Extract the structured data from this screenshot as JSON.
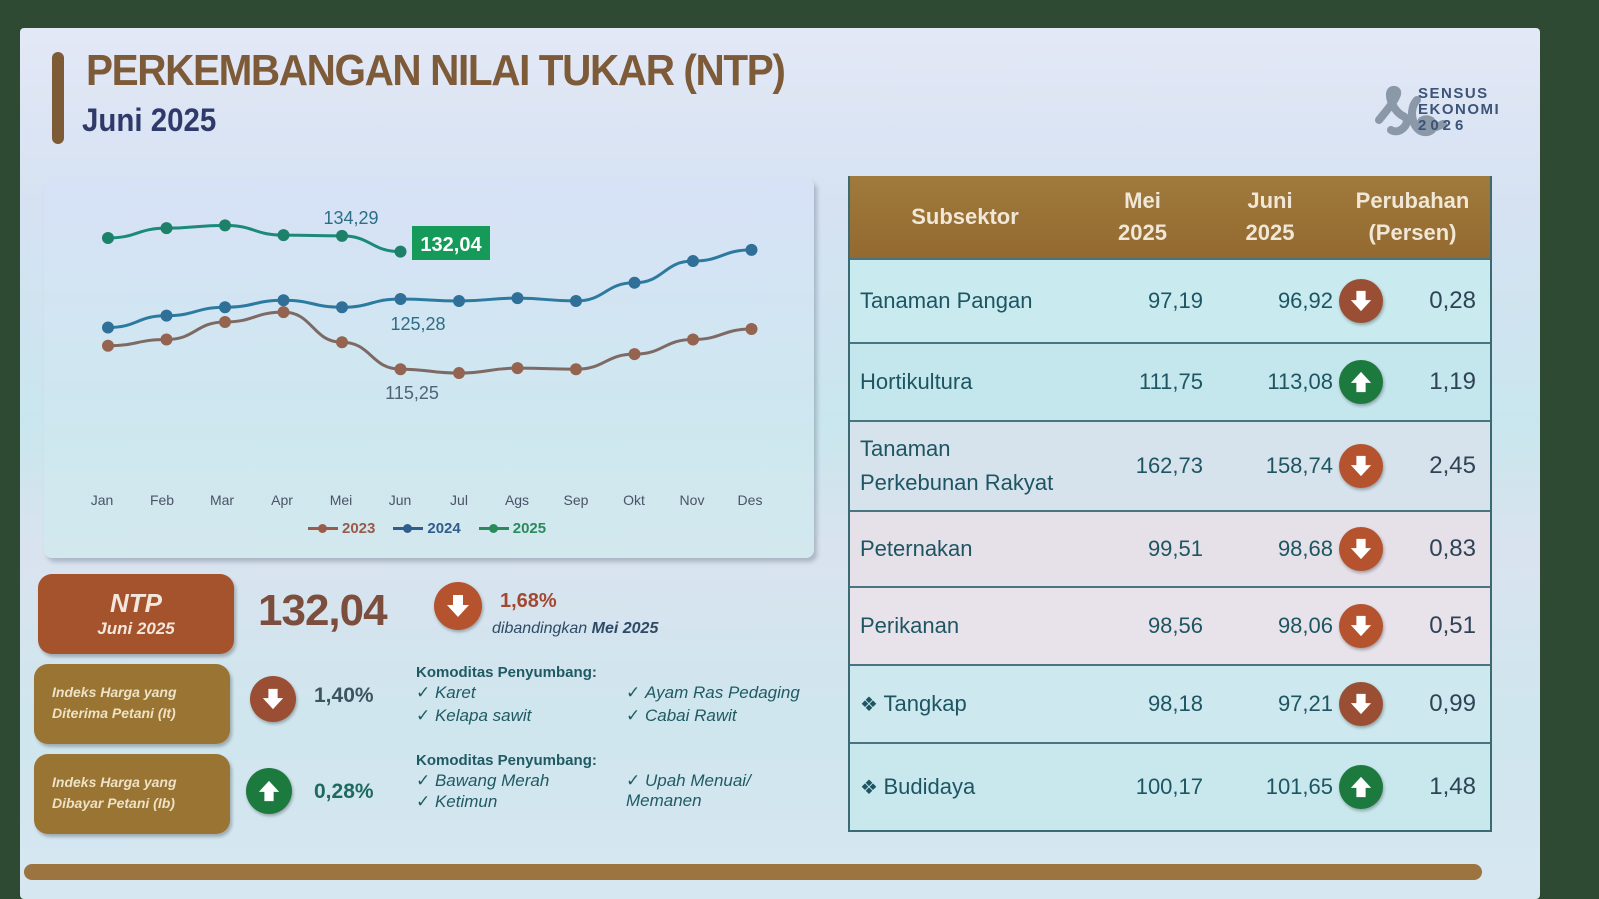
{
  "header": {
    "title": "PERKEMBANGAN NILAI TUKAR (NTP)",
    "subtitle": "Juni 2025",
    "logo": {
      "line1": "SENSUS",
      "line2": "EKONOMI",
      "line3": "2026",
      "icon": "se2026-logo-icon"
    }
  },
  "chart_data": {
    "type": "line",
    "title": "",
    "xlabel": "",
    "ylabel": "",
    "categories": [
      "Jan",
      "Feb",
      "Mar",
      "Apr",
      "Mei",
      "Jun",
      "Jul",
      "Ags",
      "Sep",
      "Okt",
      "Nov",
      "Des"
    ],
    "series": [
      {
        "name": "2023",
        "color": "#8a6a5e",
        "values": [
          118.6,
          119.5,
          122.0,
          123.4,
          119.1,
          115.25,
          114.7,
          115.4,
          115.25,
          117.4,
          119.5,
          121.0
        ]
      },
      {
        "name": "2024",
        "color": "#2c7aa3",
        "values": [
          121.2,
          122.9,
          124.1,
          125.1,
          124.1,
          125.28,
          125.0,
          125.4,
          125.0,
          127.6,
          130.7,
          132.3
        ]
      },
      {
        "name": "2025",
        "color": "#1e8a7a",
        "values": [
          134.0,
          135.4,
          135.8,
          134.4,
          134.29,
          132.04
        ]
      }
    ],
    "annotations": [
      {
        "series": "2025",
        "x": "Mei",
        "label": "134,29"
      },
      {
        "series": "2025",
        "x": "Jun",
        "label": "132,04",
        "highlight": true
      },
      {
        "series": "2024",
        "x": "Jun",
        "label": "125,28"
      },
      {
        "series": "2023",
        "x": "Jun",
        "label": "115,25"
      }
    ],
    "grid": false,
    "legend_position": "bottom",
    "ylim": [
      105,
      142
    ]
  },
  "chart_labels": {
    "label_2025_mei": "134,29",
    "label_2025_jun": "132,04",
    "label_2024_jun": "125,28",
    "label_2023_jun": "115,25"
  },
  "months": [
    "Jan",
    "Feb",
    "Mar",
    "Apr",
    "Mei",
    "Jun",
    "Jul",
    "Ags",
    "Sep",
    "Okt",
    "Nov",
    "Des"
  ],
  "legend": [
    {
      "label": "2023",
      "color": "#9a5a4c"
    },
    {
      "label": "2024",
      "color": "#2f5d8c"
    },
    {
      "label": "2025",
      "color": "#2b8a5c"
    }
  ],
  "ntp": {
    "label": "NTP",
    "period": "Juni 2025",
    "value": "132,04",
    "direction": "down",
    "change": "1,68%",
    "note_prefix": "dibandingkan ",
    "note_period": "Mei 2025"
  },
  "indices": [
    {
      "label_line1": "Indeks Harga yang",
      "label_line2": "Diterima Petani (It)",
      "direction": "down",
      "change": "1,40%",
      "komoditas_header": "Komoditas Penyumbang:",
      "komoditas": [
        "Karet",
        "Ayam Ras Pedaging",
        "Kelapa sawit",
        "Cabai Rawit"
      ]
    },
    {
      "label_line1": "Indeks Harga yang",
      "label_line2": "Dibayar Petani (Ib)",
      "direction": "up",
      "change": "0,28%",
      "komoditas_header": "Komoditas Penyumbang:",
      "komoditas": [
        "Bawang Merah",
        "Upah Menuai/ Memanen",
        "Ketimun",
        ""
      ]
    }
  ],
  "table": {
    "headers": {
      "subsektor": "Subsektor",
      "mei_1": "Mei",
      "mei_2": "2025",
      "juni_1": "Juni",
      "juni_2": "2025",
      "perubahan_1": "Perubahan",
      "perubahan_2": "(Persen)"
    },
    "rows": [
      {
        "name": "Tanaman Pangan",
        "mei": "97,19",
        "juni": "96,92",
        "direction": "down",
        "change": "0,28"
      },
      {
        "name": "Hortikultura",
        "mei": "111,75",
        "juni": "113,08",
        "direction": "up",
        "change": "1,19"
      },
      {
        "name": "Tanaman Perkebunan Rakyat",
        "name_l1": "Tanaman",
        "name_l2": "Perkebunan Rakyat",
        "mei": "162,73",
        "juni": "158,74",
        "direction": "down",
        "change": "2,45"
      },
      {
        "name": "Peternakan",
        "mei": "99,51",
        "juni": "98,68",
        "direction": "down",
        "change": "0,83"
      },
      {
        "name": "Perikanan",
        "mei": "98,56",
        "juni": "98,06",
        "direction": "down",
        "change": "0,51"
      },
      {
        "name": "Tangkap",
        "mei": "98,18",
        "juni": "97,21",
        "direction": "down",
        "change": "0,99",
        "sub": true
      },
      {
        "name": "Budidaya",
        "mei": "100,17",
        "juni": "101,65",
        "direction": "up",
        "change": "1,48",
        "sub": true
      }
    ]
  },
  "colors": {
    "title": "#7d5a38",
    "subtitle": "#2f3a6b",
    "ntp_box": "#a4532c",
    "index_box": "#9a7432",
    "table_header": "#9a7232",
    "down": "#b5532f",
    "up": "#1d7a3e",
    "highlight_label": "#169a5a"
  }
}
